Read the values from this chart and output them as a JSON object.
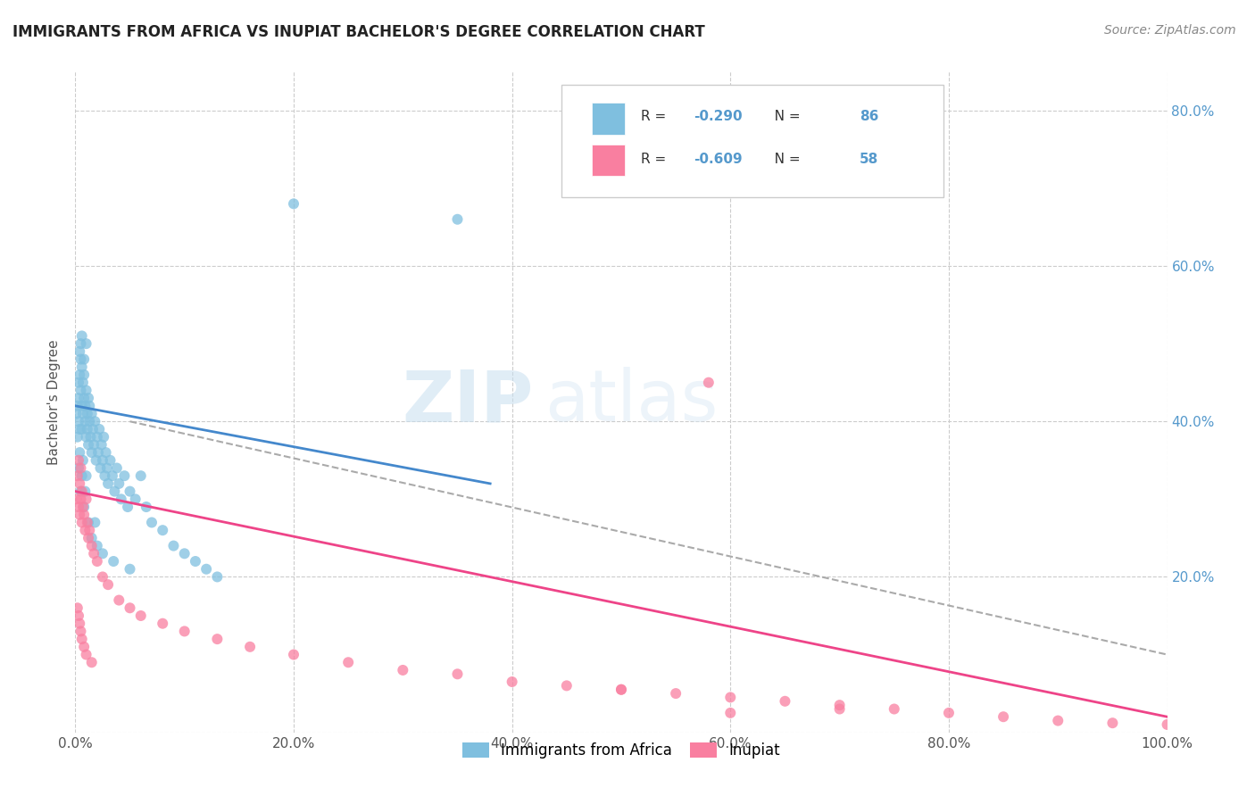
{
  "title": "IMMIGRANTS FROM AFRICA VS INUPIAT BACHELOR'S DEGREE CORRELATION CHART",
  "source": "Source: ZipAtlas.com",
  "ylabel": "Bachelor's Degree",
  "r_africa": -0.29,
  "n_africa": 86,
  "r_inupiat": -0.609,
  "n_inupiat": 58,
  "color_africa": "#7fbfdf",
  "color_inupiat": "#f97fa0",
  "color_trendline_africa": "#4488cc",
  "color_trendline_inupiat": "#ee4488",
  "color_trendline_dashed": "#aaaaaa",
  "background_color": "#ffffff",
  "grid_color": "#cccccc",
  "title_color": "#222222",
  "source_color": "#888888",
  "right_axis_color": "#5599cc",
  "watermark_zip": "ZIP",
  "watermark_atlas": "atlas",
  "xlim": [
    0.0,
    1.0
  ],
  "ylim": [
    0.0,
    0.85
  ],
  "xtick_labels": [
    "0.0%",
    "20.0%",
    "40.0%",
    "60.0%",
    "80.0%",
    "100.0%"
  ],
  "xtick_vals": [
    0.0,
    0.2,
    0.4,
    0.6,
    0.8,
    1.0
  ],
  "ytick_vals_right": [
    0.8,
    0.6,
    0.4,
    0.2
  ],
  "ytick_labels_right": [
    "80.0%",
    "60.0%",
    "40.0%",
    "20.0%"
  ],
  "africa_x": [
    0.001,
    0.002,
    0.002,
    0.003,
    0.003,
    0.003,
    0.004,
    0.004,
    0.005,
    0.005,
    0.005,
    0.006,
    0.006,
    0.006,
    0.007,
    0.007,
    0.008,
    0.008,
    0.009,
    0.009,
    0.01,
    0.01,
    0.011,
    0.011,
    0.012,
    0.012,
    0.013,
    0.013,
    0.014,
    0.015,
    0.015,
    0.016,
    0.017,
    0.018,
    0.019,
    0.02,
    0.021,
    0.022,
    0.023,
    0.024,
    0.025,
    0.026,
    0.027,
    0.028,
    0.029,
    0.03,
    0.032,
    0.034,
    0.036,
    0.038,
    0.04,
    0.042,
    0.045,
    0.048,
    0.05,
    0.055,
    0.06,
    0.065,
    0.07,
    0.08,
    0.09,
    0.1,
    0.11,
    0.12,
    0.13,
    0.003,
    0.004,
    0.005,
    0.006,
    0.007,
    0.008,
    0.009,
    0.01,
    0.012,
    0.015,
    0.018,
    0.02,
    0.025,
    0.035,
    0.05,
    0.2,
    0.35,
    0.004,
    0.006,
    0.008,
    0.01
  ],
  "africa_y": [
    0.41,
    0.42,
    0.38,
    0.43,
    0.4,
    0.45,
    0.39,
    0.46,
    0.48,
    0.44,
    0.5,
    0.42,
    0.47,
    0.39,
    0.45,
    0.41,
    0.43,
    0.46,
    0.4,
    0.42,
    0.38,
    0.44,
    0.39,
    0.41,
    0.43,
    0.37,
    0.4,
    0.42,
    0.38,
    0.41,
    0.36,
    0.39,
    0.37,
    0.4,
    0.35,
    0.38,
    0.36,
    0.39,
    0.34,
    0.37,
    0.35,
    0.38,
    0.33,
    0.36,
    0.34,
    0.32,
    0.35,
    0.33,
    0.31,
    0.34,
    0.32,
    0.3,
    0.33,
    0.29,
    0.31,
    0.3,
    0.33,
    0.29,
    0.27,
    0.26,
    0.24,
    0.23,
    0.22,
    0.21,
    0.2,
    0.34,
    0.36,
    0.31,
    0.33,
    0.35,
    0.29,
    0.31,
    0.33,
    0.27,
    0.25,
    0.27,
    0.24,
    0.23,
    0.22,
    0.21,
    0.68,
    0.66,
    0.49,
    0.51,
    0.48,
    0.5
  ],
  "inupiat_x": [
    0.001,
    0.002,
    0.003,
    0.003,
    0.004,
    0.004,
    0.005,
    0.005,
    0.006,
    0.006,
    0.007,
    0.008,
    0.009,
    0.01,
    0.011,
    0.012,
    0.013,
    0.015,
    0.017,
    0.02,
    0.025,
    0.03,
    0.04,
    0.05,
    0.06,
    0.08,
    0.1,
    0.13,
    0.16,
    0.2,
    0.25,
    0.3,
    0.35,
    0.4,
    0.45,
    0.5,
    0.55,
    0.6,
    0.65,
    0.7,
    0.75,
    0.8,
    0.85,
    0.9,
    0.95,
    1.0,
    0.002,
    0.003,
    0.004,
    0.005,
    0.006,
    0.008,
    0.01,
    0.015,
    0.5,
    0.7,
    0.6,
    0.58
  ],
  "inupiat_y": [
    0.3,
    0.33,
    0.35,
    0.29,
    0.32,
    0.28,
    0.34,
    0.3,
    0.31,
    0.27,
    0.29,
    0.28,
    0.26,
    0.3,
    0.27,
    0.25,
    0.26,
    0.24,
    0.23,
    0.22,
    0.2,
    0.19,
    0.17,
    0.16,
    0.15,
    0.14,
    0.13,
    0.12,
    0.11,
    0.1,
    0.09,
    0.08,
    0.075,
    0.065,
    0.06,
    0.055,
    0.05,
    0.045,
    0.04,
    0.035,
    0.03,
    0.025,
    0.02,
    0.015,
    0.012,
    0.01,
    0.16,
    0.15,
    0.14,
    0.13,
    0.12,
    0.11,
    0.1,
    0.09,
    0.055,
    0.03,
    0.025,
    0.45
  ]
}
